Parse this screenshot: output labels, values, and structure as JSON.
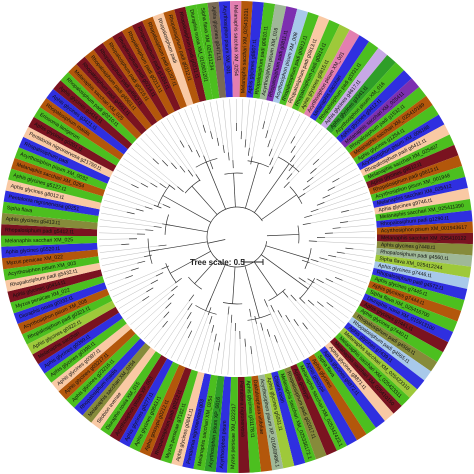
{
  "figure": {
    "title": "",
    "scale_label": "Tree scale: 0.5"
  },
  "clade_colors": {
    "peach": "#f9c9a4",
    "lime": "#4cbf1f",
    "blue": "#2f2fe0",
    "brown": "#b3570b",
    "dark_red": "#7a1320",
    "olive": "#868b3a",
    "sage": "#9fb897",
    "yellow_green": "#9ec93a",
    "light_blue": "#a8c9ea",
    "green": "#2f9e28",
    "pink": "#e37fb0",
    "purple": "#7d2fb0",
    "light_purple": "#c7a8e6",
    "grey_brown": "#7a6a55"
  },
  "leaves": [
    {
      "label": "Aphis glycines g9746.t1",
      "color": "peach"
    },
    {
      "label": "Melanaphis sacchari XM_025411390",
      "color": "lime"
    },
    {
      "label": "Rhopalosiphum padi g1290.t1",
      "color": "blue"
    },
    {
      "label": "Acyrthosiphon pisum XM_001943617",
      "color": "brown"
    },
    {
      "label": "Melanaphis sacchari XM_025410122",
      "color": "dark_red"
    },
    {
      "label": "Aphis glycines g7448.t1",
      "color": "olive"
    },
    {
      "label": "Rhopalosiphum padi g4560.t1",
      "color": "sage"
    },
    {
      "label": "Sipha flava XM_025412244",
      "color": "yellow_green"
    },
    {
      "label": "Aphis glycines g7446.t1",
      "color": "light_blue"
    },
    {
      "label": "Rhopalosiphum padi g4572.t1",
      "color": "blue"
    },
    {
      "label": "Aphis glycines g7445.t1",
      "color": "lime"
    },
    {
      "label": "Aphis glycines g7444.t1",
      "color": "brown"
    },
    {
      "label": "Sipha flava XM_025416700",
      "color": "lime"
    },
    {
      "label": "Diuraphis noxia XM_015913100",
      "color": "blue"
    },
    {
      "label": "Aphis glycines g7441.t1",
      "color": "dark_red"
    },
    {
      "label": "Aphis glycines g7440.t1",
      "color": "lime"
    },
    {
      "label": "Rhopalosiphum padi g4566.t1",
      "color": "olive"
    },
    {
      "label": "Rhopalosiphum padi g4565.t1",
      "color": "light_blue"
    },
    {
      "label": "Aphis glycines g7439.t1",
      "color": "blue"
    },
    {
      "label": "Melanaphis sacchari XM_025423310",
      "color": "yellow_green"
    },
    {
      "label": "Melanaphis sacchari XM_025423311",
      "color": "lime"
    },
    {
      "label": "Melanaphis sacchari XM_025410150",
      "color": "dark_red"
    },
    {
      "label": "Aphis glycines g8871.t1",
      "color": "peach"
    },
    {
      "label": "Aphis glycines g8872.t1",
      "color": "blue"
    },
    {
      "label": "Sipha flava",
      "color": "lime"
    },
    {
      "label": "Aphis glycines",
      "color": "brown"
    },
    {
      "label": "Aphis gossypii",
      "color": "blue"
    },
    {
      "label": "Melanaphis sacchari XM_025342423.1",
      "color": "lime"
    },
    {
      "label": "Aphis gossypii",
      "color": "dark_red"
    },
    {
      "label": "Rhopalosiphum padi g02017.t1",
      "color": "olive"
    },
    {
      "label": "Melanaphis sacchari XM_025336172.1",
      "color": "lime"
    },
    {
      "label": "Cinara cedri",
      "color": "blue"
    },
    {
      "label": "Aphis glycines g5931.t1",
      "color": "yellow_green"
    },
    {
      "label": "Acyrthosiphon pisum XP_016659986.1",
      "color": "sage"
    },
    {
      "label": "Daktulosphaira vitifoliae",
      "color": "brown"
    },
    {
      "label": "Aphis glycines g31178.t1",
      "color": "lime"
    },
    {
      "label": "Pentalonia nigronervosa",
      "color": "dark_red"
    },
    {
      "label": "Myzus persicae XM_022317",
      "color": "lime"
    },
    {
      "label": "Acyrthosiphon pisum",
      "color": "blue"
    },
    {
      "label": "Acyrthosiphon pisum XP_0016",
      "color": "green"
    },
    {
      "label": "Melanaphis sacchari XM_0254",
      "color": "lime"
    },
    {
      "label": "Pentalonia nigronervosa g03",
      "color": "blue"
    },
    {
      "label": "Aphis glycines g0841.t1",
      "color": "peach"
    },
    {
      "label": "Myzus persicae g7182.t1",
      "color": "lime"
    },
    {
      "label": "Rhopalosiphum padi g0212.t1",
      "color": "dark_red"
    },
    {
      "label": "Aphis gossypii g0212.t1",
      "color": "brown"
    },
    {
      "label": "Aphis glycines g0843.t1",
      "color": "lime"
    },
    {
      "label": "Aphis glycines g0277.t1",
      "color": "blue"
    },
    {
      "label": "Acyrthosiphon pisum XP_003",
      "color": "dark_red"
    },
    {
      "label": "Diuraphis noxia XM_015",
      "color": "lime"
    },
    {
      "label": "Sitobion avenae",
      "color": "peach"
    },
    {
      "label": "Melanaphis sacchari XM_0254",
      "color": "olive"
    },
    {
      "label": "Rhopalosiphum maidis",
      "color": "blue"
    },
    {
      "label": "Aphis glycines g23216.t1",
      "color": "lime"
    },
    {
      "label": "Aphis glycines g03217.t1",
      "color": "brown"
    },
    {
      "label": "Aphis glycines g0397.t1",
      "color": "peach"
    },
    {
      "label": "Aphis glycines g0398.t1",
      "color": "lime"
    },
    {
      "label": "Aphis glycines g0399.t1",
      "color": "blue"
    },
    {
      "label": "Melanaphis sacchari",
      "color": "dark_red"
    },
    {
      "label": "Aphis glycines g0322.t1",
      "color": "yellow_green"
    },
    {
      "label": "Rhopalosiphum padi g0321.t1",
      "color": "lime"
    },
    {
      "label": "Acyrthosiphon pisum XM_008",
      "color": "brown"
    },
    {
      "label": "Diuraphis noxia g0332.t1",
      "color": "blue"
    },
    {
      "label": "Myzus persicae XM_022",
      "color": "lime"
    },
    {
      "label": "Aphis glycines g0414.t1",
      "color": "dark_red"
    },
    {
      "label": "Rhopalosiphum padi g5432.t1",
      "color": "peach"
    },
    {
      "label": "Acyrthosiphon pisum XM_003",
      "color": "lime"
    },
    {
      "label": "Myzus persicae XM_022",
      "color": "brown"
    },
    {
      "label": "Aphis glycines g5520.t1",
      "color": "blue"
    },
    {
      "label": "Melanaphis sacchari XM_025",
      "color": "lime"
    },
    {
      "label": "Rhopalosiphum padi g5412.t1",
      "color": "dark_red"
    },
    {
      "label": "Aphis glycines g5413.t1",
      "color": "olive"
    },
    {
      "label": "Sipha flava",
      "color": "lime"
    },
    {
      "label": "Pentalonia nigronervosa g0251",
      "color": "blue"
    },
    {
      "label": "Aphis glycines g8012.t1",
      "color": "peach"
    },
    {
      "label": "Aphis glycines g5127.t1",
      "color": "lime"
    },
    {
      "label": "Melanaphis sacchari XM_0254",
      "color": "brown"
    },
    {
      "label": "Acyrthosiphon pisum XM_0032",
      "color": "lime"
    },
    {
      "label": "Rhopalosiphum padi",
      "color": "blue"
    },
    {
      "label": "Pentalonia nigronervosa g21750.t1",
      "color": "peach"
    },
    {
      "label": "Aphis glycines g0201.t1",
      "color": "dark_red"
    },
    {
      "label": "Eriosoma lanigerum",
      "color": "lime"
    },
    {
      "label": "Rhopalosiphum maidis",
      "color": "brown"
    },
    {
      "label": "Aphis glycines g3421.t1",
      "color": "blue"
    },
    {
      "label": "Aphis glycines g3416.t1",
      "color": "dark_red"
    },
    {
      "label": "Rhopalosiphum padi g0210.t1",
      "color": "lime"
    },
    {
      "label": "Melanaphis sacchari XM_025",
      "color": "brown"
    },
    {
      "label": "Rhopalosiphum padi g4561.t1",
      "color": "dark_red"
    },
    {
      "label": "Rhopalosiphum padi g4563.t1",
      "color": "brown"
    },
    {
      "label": "Rhopalosiphum padi g4562.t1",
      "color": "dark_red"
    },
    {
      "label": "Rhopalosiphum padi g0215.t1",
      "color": "brown"
    },
    {
      "label": "Rhopalosiphum padi g0214.t1",
      "color": "dark_red"
    },
    {
      "label": "Rhopalosiphum padi g0213.t1",
      "color": "brown"
    },
    {
      "label": "Rhopalosiphum padi g1204.t1",
      "color": "dark_red"
    },
    {
      "label": "Rhopalosiphum padi g1207.t1",
      "color": "brown"
    },
    {
      "label": "Rhopalosiphum padi",
      "color": "peach"
    },
    {
      "label": "Rhopalosiphum padi g0212.t1",
      "color": "brown"
    },
    {
      "label": "Rhopalosiphum padi g0211.t1",
      "color": "dark_red"
    },
    {
      "label": "Diuraphis noxia XM_015901201",
      "color": "lime"
    },
    {
      "label": "Sipha flava XM_025411234",
      "color": "lime"
    },
    {
      "label": "Aphis glycines g0471.t1",
      "color": "grey_brown"
    },
    {
      "label": "Acyrthosiphon pisum XM_001",
      "color": "blue"
    },
    {
      "label": "Melanaphis sacchari XM_0254",
      "color": "pink"
    },
    {
      "label": "Melanaphis sacchari XM_025410231",
      "color": "brown"
    },
    {
      "label": "Aphis glycines g8807.t1",
      "color": "blue"
    },
    {
      "label": "Rhopalosiphum padi g0810.t1",
      "color": "lime"
    },
    {
      "label": "Acyrthosiphon pisum XM_016",
      "color": "sage"
    },
    {
      "label": "Rhopalosiphum padi g0811.t1",
      "color": "purple"
    },
    {
      "label": "Acyrthosiphon pisum XM_008",
      "color": "light_blue"
    },
    {
      "label": "Rhopalosiphum padi g0812.t1",
      "color": "lime"
    },
    {
      "label": "Rhopalosiphum padi g0813.t1",
      "color": "peach"
    },
    {
      "label": "Rhopalosiphum padi g0814.t1",
      "color": "lime"
    },
    {
      "label": "Aphis glycines g0815.t1",
      "color": "yellow_green"
    },
    {
      "label": "Acyrthosiphon pisum XM_001",
      "color": "pink"
    },
    {
      "label": "Melanaphis sacchari",
      "color": "blue"
    },
    {
      "label": "Rhopalosiphum padi g3331.t1",
      "color": "lime"
    },
    {
      "label": "Aphis glycines g4617.t1",
      "color": "light_purple"
    },
    {
      "label": "Aphis glycines g3341.t1",
      "color": "green"
    },
    {
      "label": "Acyrthosiphon pisum XM_016",
      "color": "lime"
    },
    {
      "label": "Aphis glycines g9412.t1",
      "color": "blue"
    },
    {
      "label": "Melanaphis sacchari XM_025411",
      "color": "purple"
    },
    {
      "label": "Rhopalosiphum padi g1532.t1",
      "color": "lime"
    },
    {
      "label": "Melanaphis sacchari XM_025410189",
      "color": "brown"
    },
    {
      "label": "Aphis glycines g1254.t1",
      "color": "lime"
    },
    {
      "label": "Acyrthosiphon pisum XM_008186",
      "color": "blue"
    },
    {
      "label": "Rhopalosiphum padi g6411.t1",
      "color": "peach"
    },
    {
      "label": "Melanaphis sacchari XM_025407",
      "color": "lime"
    },
    {
      "label": "Aphis glycines g9612.t1",
      "color": "dark_red"
    },
    {
      "label": "Rhopalosiphum padi g9613.t1",
      "color": "brown"
    },
    {
      "label": "Acyrthosiphon pisum XM_001948",
      "color": "lime"
    },
    {
      "label": "Melanaphis sacchari XM_025412",
      "color": "blue"
    }
  ]
}
